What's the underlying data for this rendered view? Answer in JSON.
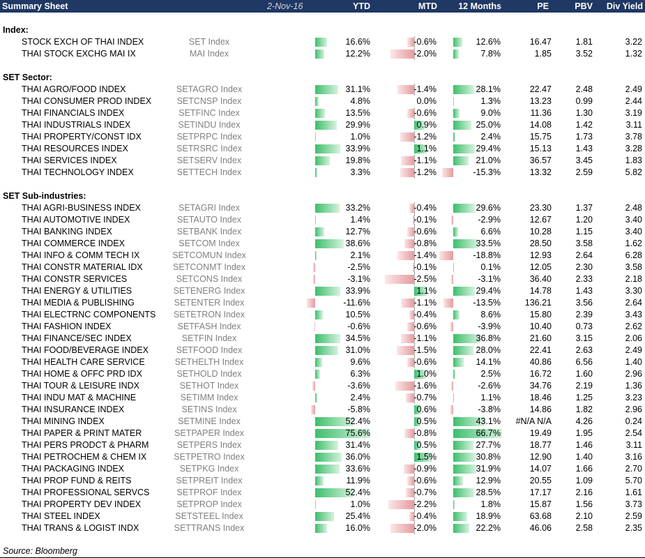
{
  "header": {
    "title": "Summary Sheet",
    "date": "2-Nov-16",
    "cols": [
      "YTD",
      "MTD",
      "12 Months",
      "PE",
      "PBV",
      "Div Yield"
    ]
  },
  "sections": [
    {
      "title": "Index:",
      "rows": [
        {
          "name": "STOCK EXCH OF THAI INDEX",
          "ticker": "SET Index",
          "ytd": "16.6%",
          "mtd": "-0.6%",
          "m12": "12.6%",
          "pe": "16.47",
          "pbv": "1.81",
          "dy": "3.22",
          "ytd_v": 16.6,
          "mtd_v": -0.6,
          "m12_v": 12.6
        },
        {
          "name": "THAI STOCK EXCHG MAI IX",
          "ticker": "MAI Index",
          "ytd": "12.2%",
          "mtd": "-2.0%",
          "m12": "7.8%",
          "pe": "1.85",
          "pbv": "3.52",
          "dy": "1.32",
          "ytd_v": 12.2,
          "mtd_v": -2.0,
          "m12_v": 7.8
        }
      ]
    },
    {
      "title": "SET Sector:",
      "rows": [
        {
          "name": "THAI AGRO/FOOD INDEX",
          "ticker": "SETAGRO Index",
          "ytd": "31.1%",
          "mtd": "-1.4%",
          "m12": "28.1%",
          "pe": "22.47",
          "pbv": "2.48",
          "dy": "2.49",
          "ytd_v": 31.1,
          "mtd_v": -1.4,
          "m12_v": 28.1
        },
        {
          "name": "THAI CONSUMER PROD INDEX",
          "ticker": "SETCNSP Index",
          "ytd": "4.8%",
          "mtd": "0.0%",
          "m12": "1.3%",
          "pe": "13.23",
          "pbv": "0.99",
          "dy": "2.44",
          "ytd_v": 4.8,
          "mtd_v": 0.0,
          "m12_v": 1.3
        },
        {
          "name": "THAI FINANCIALS INDEX",
          "ticker": "SETFINC Index",
          "ytd": "13.5%",
          "mtd": "-0.6%",
          "m12": "9.0%",
          "pe": "11.36",
          "pbv": "1.30",
          "dy": "3.19",
          "ytd_v": 13.5,
          "mtd_v": -0.6,
          "m12_v": 9.0
        },
        {
          "name": "THAI INDUSTRIALS INDEX",
          "ticker": "SETINDU Index",
          "ytd": "29.9%",
          "mtd": "0.9%",
          "m12": "25.0%",
          "pe": "14.08",
          "pbv": "1.42",
          "dy": "3.11",
          "ytd_v": 29.9,
          "mtd_v": 0.9,
          "m12_v": 25.0
        },
        {
          "name": "THAI PROPERTY/CONST IDX",
          "ticker": "SETPRPC Index",
          "ytd": "1.0%",
          "mtd": "-1.2%",
          "m12": "2.4%",
          "pe": "15.75",
          "pbv": "1.73",
          "dy": "3.78",
          "ytd_v": 1.0,
          "mtd_v": -1.2,
          "m12_v": 2.4
        },
        {
          "name": "THAI RESOURCES INDEX",
          "ticker": "SETRSRC Index",
          "ytd": "33.9%",
          "mtd": "1.1%",
          "m12": "29.4%",
          "pe": "15.13",
          "pbv": "1.43",
          "dy": "3.28",
          "ytd_v": 33.9,
          "mtd_v": 1.1,
          "m12_v": 29.4
        },
        {
          "name": "THAI SERVICES INDEX",
          "ticker": "SETSERV Index",
          "ytd": "19.8%",
          "mtd": "-1.1%",
          "m12": "21.0%",
          "pe": "36.57",
          "pbv": "3.45",
          "dy": "1.83",
          "ytd_v": 19.8,
          "mtd_v": -1.1,
          "m12_v": 21.0
        },
        {
          "name": "THAI TECHNOLOGY INDEX",
          "ticker": "SETTECH Index",
          "ytd": "3.3%",
          "mtd": "-1.2%",
          "m12": "-15.3%",
          "pe": "13.32",
          "pbv": "2.59",
          "dy": "5.82",
          "ytd_v": 3.3,
          "mtd_v": -1.2,
          "m12_v": -15.3
        }
      ]
    },
    {
      "title": "SET Sub-industries:",
      "rows": [
        {
          "name": "THAI AGRI-BUSINESS INDEX",
          "ticker": "SETAGRI Index",
          "ytd": "33.2%",
          "mtd": "-0.4%",
          "m12": "29.6%",
          "pe": "23.30",
          "pbv": "1.37",
          "dy": "2.48",
          "ytd_v": 33.2,
          "mtd_v": -0.4,
          "m12_v": 29.6
        },
        {
          "name": "THAI AUTOMOTIVE INDEX",
          "ticker": "SETAUTO Index",
          "ytd": "1.4%",
          "mtd": "-0.1%",
          "m12": "-2.9%",
          "pe": "12.67",
          "pbv": "1.20",
          "dy": "3.40",
          "ytd_v": 1.4,
          "mtd_v": -0.1,
          "m12_v": -2.9
        },
        {
          "name": "THAI BANKING INDEX",
          "ticker": "SETBANK Index",
          "ytd": "12.7%",
          "mtd": "-0.6%",
          "m12": "6.6%",
          "pe": "10.28",
          "pbv": "1.15",
          "dy": "3.40",
          "ytd_v": 12.7,
          "mtd_v": -0.6,
          "m12_v": 6.6
        },
        {
          "name": "THAI COMMERCE INDEX",
          "ticker": "SETCOM Index",
          "ytd": "38.6%",
          "mtd": "-0.8%",
          "m12": "33.5%",
          "pe": "28.50",
          "pbv": "3.58",
          "dy": "1.62",
          "ytd_v": 38.6,
          "mtd_v": -0.8,
          "m12_v": 33.5
        },
        {
          "name": "THAI INFO & COMM TECH IX",
          "ticker": "SETCOMUN Index",
          "ytd": "2.1%",
          "mtd": "-1.4%",
          "m12": "-18.8%",
          "pe": "12.93",
          "pbv": "2.64",
          "dy": "6.28",
          "ytd_v": 2.1,
          "mtd_v": -1.4,
          "m12_v": -18.8
        },
        {
          "name": "THAI CONSTR MATERIAL IDX",
          "ticker": "SETCONMT Index",
          "ytd": "-2.5%",
          "mtd": "-0.1%",
          "m12": "0.1%",
          "pe": "12.05",
          "pbv": "2.30",
          "dy": "3.58",
          "ytd_v": -2.5,
          "mtd_v": -0.1,
          "m12_v": 0.1
        },
        {
          "name": "THAI CONSTR SERVICES",
          "ticker": "SETCONS Index",
          "ytd": "-3.1%",
          "mtd": "-2.5%",
          "m12": "-3.1%",
          "pe": "36.40",
          "pbv": "2.33",
          "dy": "2.18",
          "ytd_v": -3.1,
          "mtd_v": -2.5,
          "m12_v": -3.1
        },
        {
          "name": "THAI ENERGY & UTILITIES",
          "ticker": "SETENERG Index",
          "ytd": "33.9%",
          "mtd": "1.1%",
          "m12": "29.4%",
          "pe": "14.78",
          "pbv": "1.43",
          "dy": "3.30",
          "ytd_v": 33.9,
          "mtd_v": 1.1,
          "m12_v": 29.4
        },
        {
          "name": "THAI MEDIA & PUBLISHING",
          "ticker": "SETENTER Index",
          "ytd": "-11.6%",
          "mtd": "-1.1%",
          "m12": "-13.5%",
          "pe": "136.21",
          "pbv": "3.56",
          "dy": "2.64",
          "ytd_v": -11.6,
          "mtd_v": -1.1,
          "m12_v": -13.5
        },
        {
          "name": "THAI ELECTRNC COMPONENTS",
          "ticker": "SETETRON Index",
          "ytd": "10.5%",
          "mtd": "-0.4%",
          "m12": "8.6%",
          "pe": "15.80",
          "pbv": "2.39",
          "dy": "3.43",
          "ytd_v": 10.5,
          "mtd_v": -0.4,
          "m12_v": 8.6
        },
        {
          "name": "THAI FASHION INDEX",
          "ticker": "SETFASH Index",
          "ytd": "-0.6%",
          "mtd": "-0.6%",
          "m12": "-3.9%",
          "pe": "10.40",
          "pbv": "0.73",
          "dy": "2.62",
          "ytd_v": -0.6,
          "mtd_v": -0.6,
          "m12_v": -3.9
        },
        {
          "name": "THAI FINANCE/SEC INDEX",
          "ticker": "SETFIN Index",
          "ytd": "34.5%",
          "mtd": "-1.1%",
          "m12": "36.8%",
          "pe": "21.60",
          "pbv": "3.15",
          "dy": "2.06",
          "ytd_v": 34.5,
          "mtd_v": -1.1,
          "m12_v": 36.8
        },
        {
          "name": "THAI FOOD/BEVERAGE INDEX",
          "ticker": "SETFOOD Index",
          "ytd": "31.0%",
          "mtd": "-1.5%",
          "m12": "28.0%",
          "pe": "22.41",
          "pbv": "2.63",
          "dy": "2.49",
          "ytd_v": 31.0,
          "mtd_v": -1.5,
          "m12_v": 28.0
        },
        {
          "name": "THAI HEALTH CARE SERVICE",
          "ticker": "SETHELTH Index",
          "ytd": "9.6%",
          "mtd": "-0.6%",
          "m12": "14.1%",
          "pe": "40.86",
          "pbv": "6.56",
          "dy": "1.40",
          "ytd_v": 9.6,
          "mtd_v": -0.6,
          "m12_v": 14.1
        },
        {
          "name": "THAI HOME & OFFC PRD IDX",
          "ticker": "SETHOLD Index",
          "ytd": "6.3%",
          "mtd": "1.0%",
          "m12": "2.5%",
          "pe": "16.72",
          "pbv": "1.60",
          "dy": "2.96",
          "ytd_v": 6.3,
          "mtd_v": 1.0,
          "m12_v": 2.5
        },
        {
          "name": "THAI TOUR & LEISURE INDX",
          "ticker": "SETHOT Index",
          "ytd": "-3.6%",
          "mtd": "-1.6%",
          "m12": "-2.6%",
          "pe": "34.76",
          "pbv": "2.19",
          "dy": "1.36",
          "ytd_v": -3.6,
          "mtd_v": -1.6,
          "m12_v": -2.6
        },
        {
          "name": "THAI INDU MAT & MACHINE",
          "ticker": "SETIMM Index",
          "ytd": "2.4%",
          "mtd": "-0.7%",
          "m12": "1.1%",
          "pe": "18.46",
          "pbv": "1.25",
          "dy": "3.23",
          "ytd_v": 2.4,
          "mtd_v": -0.7,
          "m12_v": 1.1
        },
        {
          "name": "THAI INSURANCE INDEX",
          "ticker": "SETINS Index",
          "ytd": "-5.8%",
          "mtd": "0.6%",
          "m12": "-3.8%",
          "pe": "14.86",
          "pbv": "1.82",
          "dy": "2.96",
          "ytd_v": -5.8,
          "mtd_v": 0.6,
          "m12_v": -3.8
        },
        {
          "name": "THAI MINING INDEX",
          "ticker": "SETMINE Index",
          "ytd": "52.4%",
          "mtd": "0.5%",
          "m12": "43.1%",
          "pe": "#N/A N/A",
          "pbv": "4.26",
          "dy": "0.24",
          "ytd_v": 52.4,
          "mtd_v": 0.5,
          "m12_v": 43.1
        },
        {
          "name": "THAI PAPER & PRINT MATER",
          "ticker": "SETPAPER Index",
          "ytd": "75.6%",
          "mtd": "-0.8%",
          "m12": "66.7%",
          "pe": "19.49",
          "pbv": "1.95",
          "dy": "2.54",
          "ytd_v": 75.6,
          "mtd_v": -0.8,
          "m12_v": 66.7
        },
        {
          "name": "THAI PERS PRODCT & PHARM",
          "ticker": "SETPERS Index",
          "ytd": "31.4%",
          "mtd": "0.5%",
          "m12": "27.7%",
          "pe": "18.77",
          "pbv": "1.46",
          "dy": "3.11",
          "ytd_v": 31.4,
          "mtd_v": 0.5,
          "m12_v": 27.7
        },
        {
          "name": "THAI PETROCHEM & CHEM IX",
          "ticker": "SETPETRO Index",
          "ytd": "36.0%",
          "mtd": "1.5%",
          "m12": "30.8%",
          "pe": "12.90",
          "pbv": "1.40",
          "dy": "3.16",
          "ytd_v": 36.0,
          "mtd_v": 1.5,
          "m12_v": 30.8
        },
        {
          "name": "THAI PACKAGING INDEX",
          "ticker": "SETPKG Index",
          "ytd": "33.6%",
          "mtd": "-0.9%",
          "m12": "31.9%",
          "pe": "14.07",
          "pbv": "1.66",
          "dy": "2.70",
          "ytd_v": 33.6,
          "mtd_v": -0.9,
          "m12_v": 31.9
        },
        {
          "name": "THAI PROP FUND & REITS",
          "ticker": "SETPREIT Index",
          "ytd": "11.9%",
          "mtd": "-0.6%",
          "m12": "12.9%",
          "pe": "20.55",
          "pbv": "1.09",
          "dy": "5.70",
          "ytd_v": 11.9,
          "mtd_v": -0.6,
          "m12_v": 12.9
        },
        {
          "name": "THAI PROFESSIONAL SERVCS",
          "ticker": "SETPROF Index",
          "ytd": "52.4%",
          "mtd": "-0.7%",
          "m12": "28.5%",
          "pe": "17.17",
          "pbv": "2.16",
          "dy": "1.61",
          "ytd_v": 52.4,
          "mtd_v": -0.7,
          "m12_v": 28.5
        },
        {
          "name": "THAI PROPERTY DEV INDEX",
          "ticker": "SETPROP Index",
          "ytd": "1.0%",
          "mtd": "-2.2%",
          "m12": "1.8%",
          "pe": "15.87",
          "pbv": "1.56",
          "dy": "3.73",
          "ytd_v": 1.0,
          "mtd_v": -2.2,
          "m12_v": 1.8
        },
        {
          "name": "THAI STEEL INDEX",
          "ticker": "SETSTEEL Index",
          "ytd": "25.4%",
          "mtd": "-0.4%",
          "m12": "18.9%",
          "pe": "63.68",
          "pbv": "2.10",
          "dy": "2.59",
          "ytd_v": 25.4,
          "mtd_v": -0.4,
          "m12_v": 18.9
        },
        {
          "name": "THAI TRANS & LOGIST INDX",
          "ticker": "SETTRANS Index",
          "ytd": "16.0%",
          "mtd": "-2.0%",
          "m12": "22.2%",
          "pe": "46.06",
          "pbv": "2.58",
          "dy": "2.35",
          "ytd_v": 16.0,
          "mtd_v": -2.0,
          "m12_v": 22.2
        }
      ]
    }
  ],
  "source": "Source: Bloomberg",
  "colors": {
    "header_bg": "#1f3864",
    "bar_positive": "#3cbf6a",
    "bar_negative": "#e69a9e",
    "ticker_text": "#808080"
  }
}
